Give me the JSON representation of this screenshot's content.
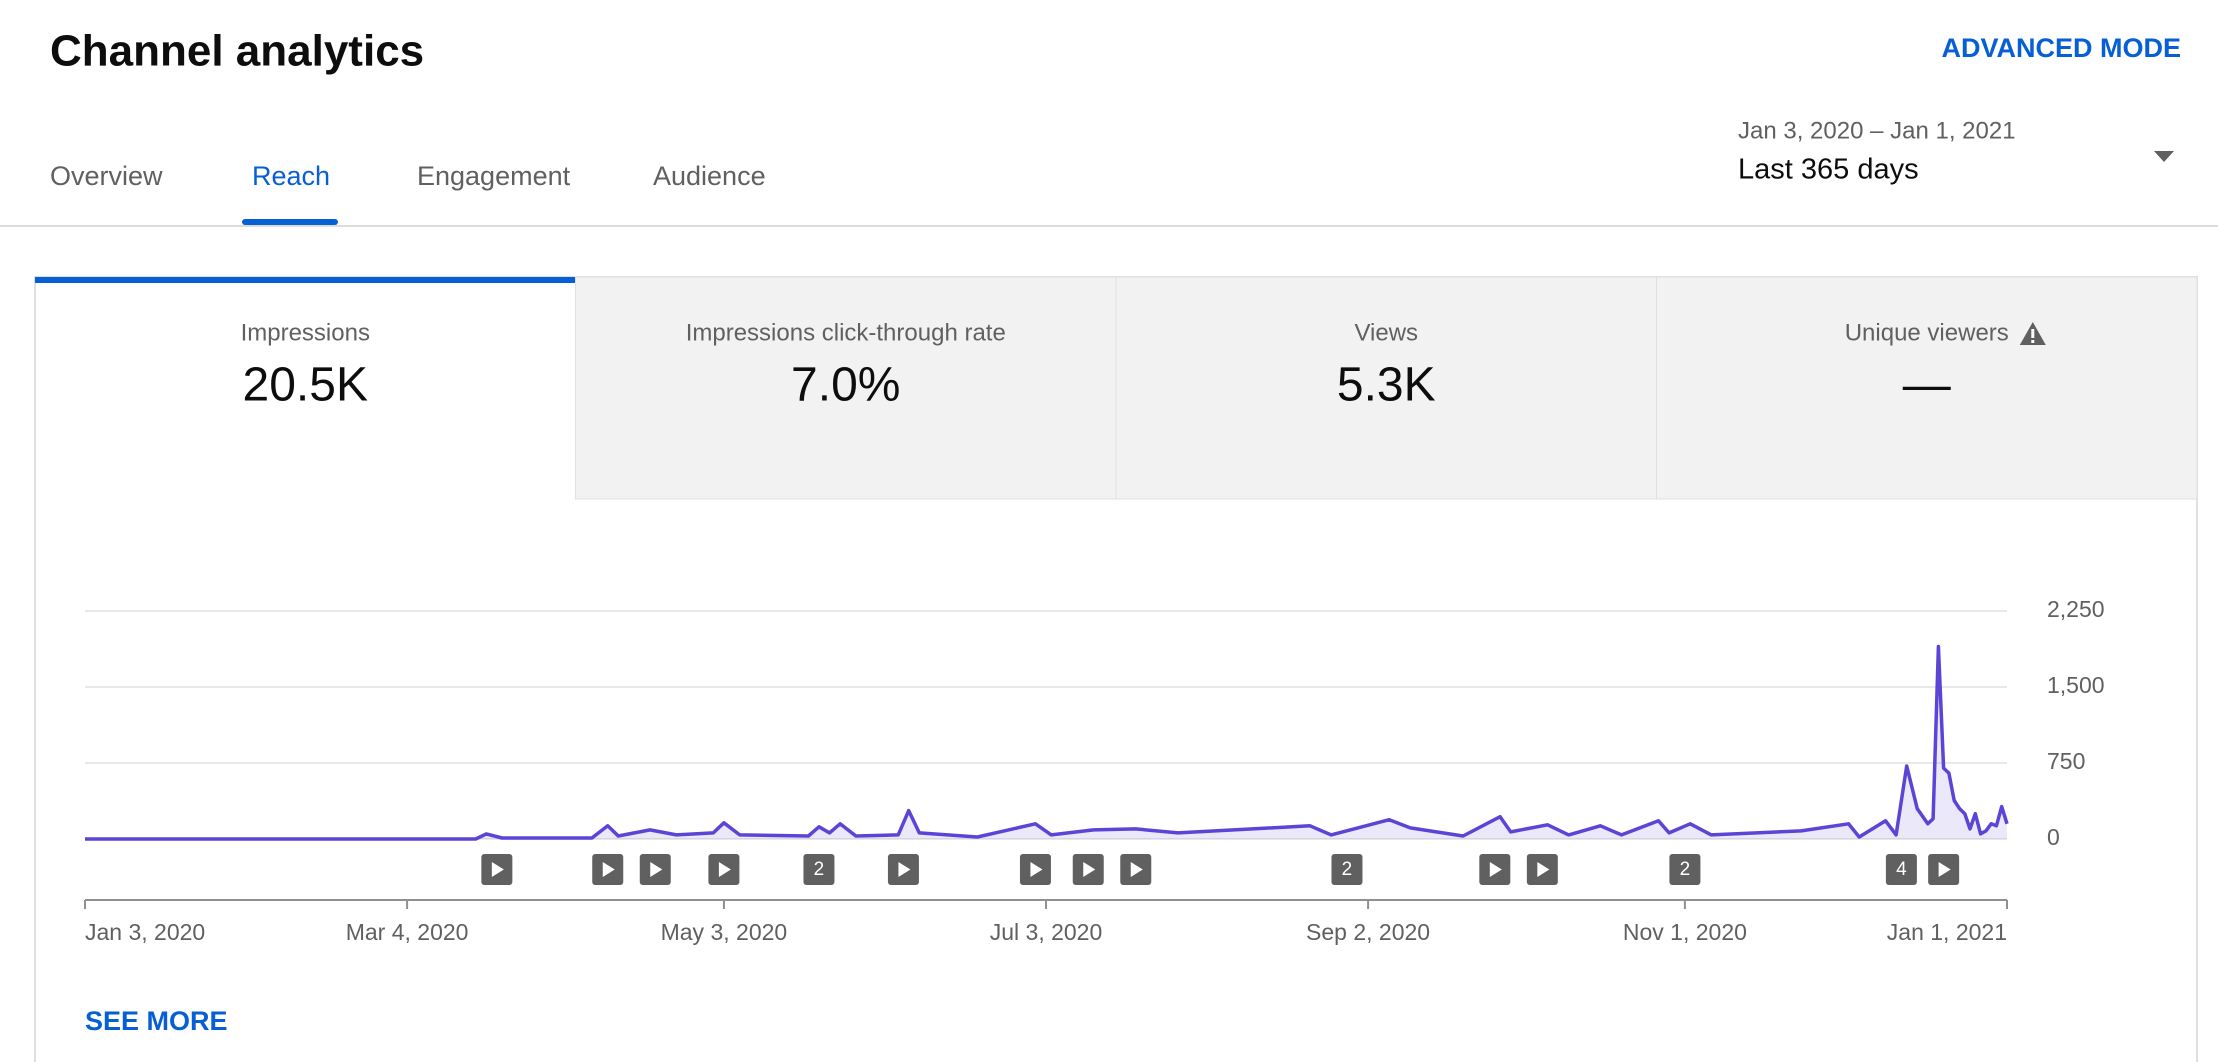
{
  "header": {
    "title": "Channel analytics",
    "action": "ADVANCED MODE"
  },
  "tabs": [
    "Overview",
    "Reach",
    "Engagement",
    "Audience"
  ],
  "date_range": {
    "range": "Jan 3, 2020 – Jan 1, 2021",
    "label": "Last 365 days"
  },
  "metrics": [
    {
      "label": "Impressions",
      "value": "20.5K"
    },
    {
      "label": "Impressions click-through rate",
      "value": "7.0%"
    },
    {
      "label": "Views",
      "value": "5.3K"
    },
    {
      "label": "Unique viewers",
      "value": "—"
    }
  ],
  "chart_data": {
    "type": "line",
    "x": [
      "2020-01-03",
      "2020-03-17",
      "2020-03-19",
      "2020-03-22",
      "2020-04-08",
      "2020-04-11",
      "2020-04-13",
      "2020-04-19",
      "2020-04-24",
      "2020-05-01",
      "2020-05-03",
      "2020-05-06",
      "2020-05-19",
      "2020-05-21",
      "2020-05-23",
      "2020-05-25",
      "2020-05-28",
      "2020-06-05",
      "2020-06-07",
      "2020-06-09",
      "2020-06-20",
      "2020-07-01",
      "2020-07-04",
      "2020-07-12",
      "2020-07-20",
      "2020-07-28",
      "2020-08-22",
      "2020-08-26",
      "2020-09-06",
      "2020-09-10",
      "2020-09-20",
      "2020-09-27",
      "2020-09-29",
      "2020-10-06",
      "2020-10-10",
      "2020-10-16",
      "2020-10-20",
      "2020-10-27",
      "2020-10-29",
      "2020-11-02",
      "2020-11-06",
      "2020-11-23",
      "2020-12-02",
      "2020-12-04",
      "2020-12-09",
      "2020-12-11",
      "2020-12-13",
      "2020-12-15",
      "2020-12-17",
      "2020-12-18",
      "2020-12-19",
      "2020-12-20",
      "2020-12-21",
      "2020-12-22",
      "2020-12-23",
      "2020-12-24",
      "2020-12-25",
      "2020-12-26",
      "2020-12-27",
      "2020-12-28",
      "2020-12-29",
      "2020-12-30",
      "2020-12-31",
      "2021-01-01"
    ],
    "series": [
      {
        "name": "Impressions",
        "color": "#5b45d6",
        "values": [
          0,
          0,
          50,
          10,
          10,
          130,
          30,
          90,
          40,
          60,
          160,
          40,
          30,
          120,
          60,
          150,
          30,
          40,
          280,
          60,
          20,
          150,
          40,
          90,
          100,
          60,
          130,
          40,
          190,
          110,
          30,
          220,
          70,
          140,
          40,
          130,
          40,
          180,
          60,
          150,
          40,
          80,
          150,
          20,
          180,
          40,
          720,
          300,
          150,
          200,
          1900,
          700,
          650,
          380,
          300,
          250,
          100,
          250,
          50,
          80,
          150,
          130,
          320,
          150
        ]
      }
    ],
    "xlim": [
      "2020-01-03",
      "2021-01-01"
    ],
    "xticks": [
      {
        "value": "2020-01-03",
        "label": "Jan 3, 2020"
      },
      {
        "value": "2020-03-04",
        "label": "Mar 4, 2020"
      },
      {
        "value": "2020-05-03",
        "label": "May 3, 2020"
      },
      {
        "value": "2020-07-03",
        "label": "Jul 3, 2020"
      },
      {
        "value": "2020-09-02",
        "label": "Sep 2, 2020"
      },
      {
        "value": "2020-11-01",
        "label": "Nov 1, 2020"
      },
      {
        "value": "2021-01-01",
        "label": "Jan 1, 2021"
      }
    ],
    "ylim": [
      0,
      2250
    ],
    "yticks": [
      0,
      750,
      {
        "value": 1500,
        "label": "1,500"
      },
      {
        "value": 2250,
        "label": "2,250"
      }
    ],
    "grid": true,
    "markers": [
      {
        "x": "2020-03-21"
      },
      {
        "x": "2020-04-11"
      },
      {
        "x": "2020-04-20"
      },
      {
        "x": "2020-05-03"
      },
      {
        "x": "2020-05-21",
        "count": 2
      },
      {
        "x": "2020-06-06"
      },
      {
        "x": "2020-07-01"
      },
      {
        "x": "2020-07-11"
      },
      {
        "x": "2020-07-20"
      },
      {
        "x": "2020-08-29",
        "count": 2
      },
      {
        "x": "2020-09-26"
      },
      {
        "x": "2020-10-05"
      },
      {
        "x": "2020-11-01",
        "count": 2
      },
      {
        "x": "2020-12-12",
        "count": 4
      },
      {
        "x": "2020-12-20"
      }
    ]
  },
  "footer": {
    "link": "SEE MORE"
  }
}
